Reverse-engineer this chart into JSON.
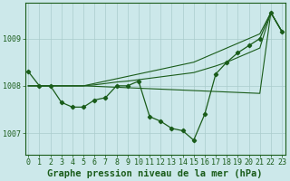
{
  "background_color": "#cce8ea",
  "grid_color": "#aacccc",
  "line_color": "#1a5c1a",
  "xlabel": "Graphe pression niveau de la mer (hPa)",
  "xlabel_fontsize": 7.5,
  "tick_fontsize": 6.0,
  "yticks": [
    1007,
    1008,
    1009
  ],
  "xlim": [
    -0.3,
    23.3
  ],
  "ylim": [
    1006.55,
    1009.75
  ],
  "x_values": [
    0,
    1,
    2,
    3,
    4,
    5,
    6,
    7,
    8,
    9,
    10,
    11,
    12,
    13,
    14,
    15,
    16,
    17,
    18,
    19,
    20,
    21,
    22,
    23
  ],
  "main_line": [
    1008.3,
    1008.0,
    1008.0,
    1007.65,
    1007.55,
    1007.55,
    1007.7,
    1007.75,
    1008.0,
    1008.0,
    1008.1,
    1007.35,
    1007.25,
    1007.1,
    1007.05,
    1006.85,
    1007.4,
    1008.25,
    1008.5,
    1008.7,
    1008.85,
    1009.0,
    1009.55,
    1009.15
  ],
  "upper_line1": [
    1008.0,
    1008.0,
    1008.0,
    1008.0,
    1008.0,
    1008.0,
    1008.05,
    1008.1,
    1008.15,
    1008.2,
    1008.25,
    1008.3,
    1008.35,
    1008.4,
    1008.45,
    1008.5,
    1008.6,
    1008.7,
    1008.8,
    1008.9,
    1009.0,
    1009.1,
    1009.55,
    1009.15
  ],
  "upper_line2": [
    1008.0,
    1008.0,
    1008.0,
    1008.0,
    1008.0,
    1008.0,
    1008.02,
    1008.05,
    1008.08,
    1008.1,
    1008.13,
    1008.16,
    1008.19,
    1008.22,
    1008.25,
    1008.28,
    1008.35,
    1008.42,
    1008.5,
    1008.6,
    1008.7,
    1008.8,
    1009.55,
    1009.15
  ],
  "lower_line": [
    1008.0,
    1008.0,
    1008.0,
    1008.0,
    1008.0,
    1008.0,
    1007.99,
    1007.98,
    1007.97,
    1007.96,
    1007.95,
    1007.94,
    1007.93,
    1007.92,
    1007.91,
    1007.9,
    1007.89,
    1007.88,
    1007.87,
    1007.86,
    1007.85,
    1007.84,
    1009.55,
    1009.15
  ]
}
